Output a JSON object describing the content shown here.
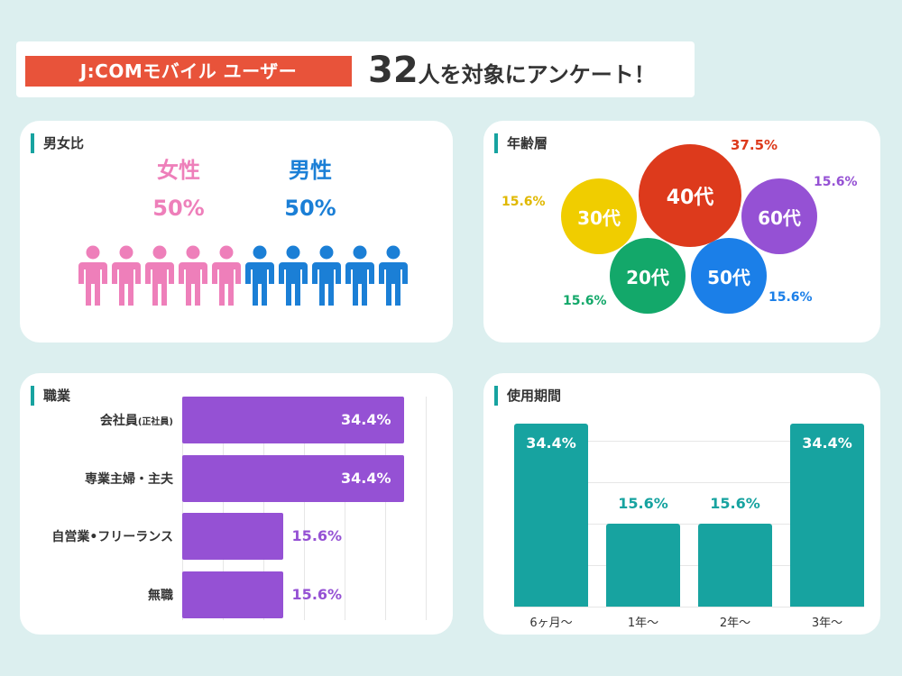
{
  "header": {
    "tag": "J:COMモバイル ユーザー",
    "count": "32",
    "headline_rest": "人を対象にアンケート！"
  },
  "colors": {
    "accent": "#17a3a0",
    "tag_bg": "#e8533a",
    "female": "#ee7fba",
    "male": "#1b7fd6",
    "occupation": "#9551d4",
    "usage": "#17a3a0"
  },
  "chart_data": [
    {
      "type": "pictogram",
      "title": "男女比",
      "categories": [
        "女性",
        "男性"
      ],
      "values": [
        50,
        50
      ],
      "value_labels": [
        "50%",
        "50%"
      ],
      "icons_per_group": 5
    },
    {
      "type": "bubble",
      "title": "年齢層",
      "categories": [
        "30代",
        "40代",
        "60代",
        "20代",
        "50代"
      ],
      "values": [
        15.6,
        37.5,
        15.6,
        15.6,
        15.6
      ],
      "value_labels": [
        "15.6%",
        "37.5%",
        "15.6%",
        "15.6%",
        "15.6%"
      ],
      "colors": [
        "#f0cd00",
        "#dd3a1c",
        "#9551d4",
        "#13a86a",
        "#1b7fe8"
      ]
    },
    {
      "type": "bar",
      "orientation": "horizontal",
      "title": "職業",
      "categories": [
        {
          "main": "会社員",
          "sub": "(正社員)"
        },
        {
          "main": "専業主婦・主夫",
          "sub": ""
        },
        {
          "main": "自営業•フリーランス",
          "sub": ""
        },
        {
          "main": "無職",
          "sub": ""
        }
      ],
      "values": [
        34.4,
        34.4,
        15.6,
        15.6
      ],
      "value_labels": [
        "34.4%",
        "34.4%",
        "15.6%",
        "15.6%"
      ],
      "xlim": [
        0,
        40
      ]
    },
    {
      "type": "bar",
      "orientation": "vertical",
      "title": "使用期間",
      "categories": [
        "6ヶ月〜",
        "1年〜",
        "2年〜",
        "3年〜"
      ],
      "values": [
        34.4,
        15.6,
        15.6,
        34.4
      ],
      "value_labels": [
        "34.4%",
        "15.6%",
        "15.6%",
        "34.4%"
      ],
      "ylim": [
        0,
        40
      ]
    }
  ]
}
